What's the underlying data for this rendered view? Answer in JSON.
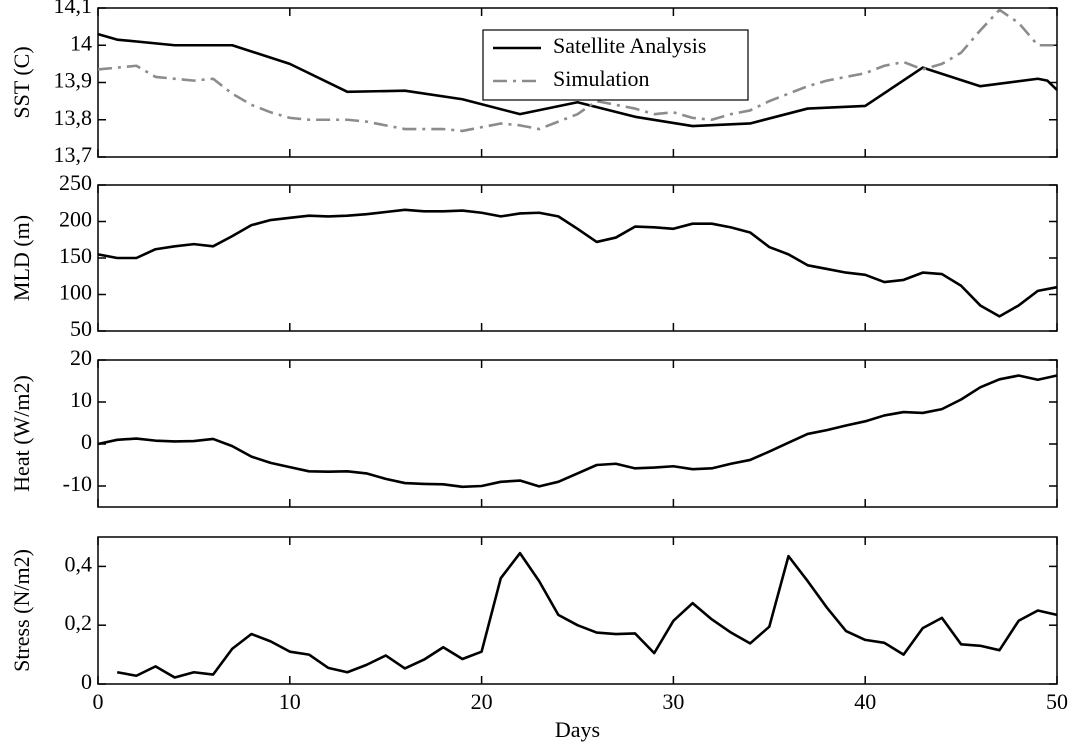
{
  "chart_data": [
    {
      "type": "line",
      "ylabel": "SST (C)",
      "xlim": [
        0,
        50
      ],
      "xticks": [
        0,
        10,
        20,
        30,
        40,
        50
      ],
      "ylim": [
        13.7,
        14.1
      ],
      "yticks": [
        {
          "value": 13.7,
          "label": "13,7"
        },
        {
          "value": 13.8,
          "label": "13,8"
        },
        {
          "value": 13.9,
          "label": "13,9"
        },
        14,
        {
          "value": 14.1,
          "label": "14,1"
        }
      ],
      "legend": "upper center",
      "series": [
        {
          "name": "Satellite Analysis",
          "color": "#000000",
          "dash": "solid",
          "x": [
            0,
            1,
            4,
            7,
            10,
            13,
            16,
            19,
            22,
            25,
            28,
            31,
            34,
            37,
            40,
            43,
            46,
            49,
            49.5,
            50
          ],
          "values": [
            14.03,
            14.015,
            14.0,
            14.0,
            13.95,
            13.875,
            13.878,
            13.855,
            13.815,
            13.847,
            13.808,
            13.783,
            13.79,
            13.83,
            13.837,
            13.94,
            13.89,
            13.91,
            13.905,
            13.88
          ]
        },
        {
          "name": "Simulation",
          "color": "#8c8c8c",
          "dash": "dash-dot",
          "x": [
            0,
            1,
            2,
            3,
            4,
            5,
            6,
            7,
            8,
            9,
            10,
            11,
            12,
            13,
            14,
            15,
            16,
            17,
            18,
            19,
            20,
            21,
            22,
            23,
            24,
            25,
            26,
            27,
            28,
            29,
            30,
            31,
            32,
            33,
            34,
            35,
            36,
            37,
            38,
            39,
            40,
            41,
            42,
            43,
            44,
            45,
            46,
            47,
            48,
            49,
            50
          ],
          "values": [
            13.935,
            13.94,
            13.945,
            13.915,
            13.91,
            13.905,
            13.91,
            13.87,
            13.84,
            13.82,
            13.805,
            13.8,
            13.8,
            13.8,
            13.795,
            13.785,
            13.775,
            13.775,
            13.775,
            13.77,
            13.78,
            13.79,
            13.785,
            13.775,
            13.795,
            13.815,
            13.85,
            13.84,
            13.83,
            13.815,
            13.82,
            13.805,
            13.8,
            13.815,
            13.825,
            13.85,
            13.87,
            13.89,
            13.905,
            13.915,
            13.925,
            13.945,
            13.955,
            13.935,
            13.95,
            13.98,
            14.04,
            14.095,
            14.06,
            14.0,
            14.0
          ]
        }
      ]
    },
    {
      "type": "line",
      "ylabel": "MLD (m)",
      "xlim": [
        0,
        50
      ],
      "xticks": [
        0,
        10,
        20,
        30,
        40,
        50
      ],
      "ylim": [
        50,
        250
      ],
      "yticks": [
        50,
        100,
        150,
        200,
        250
      ],
      "color": "#000000",
      "x": [
        0,
        1,
        2,
        3,
        4,
        5,
        6,
        7,
        8,
        9,
        10,
        11,
        12,
        13,
        14,
        15,
        16,
        17,
        18,
        19,
        20,
        21,
        22,
        23,
        24,
        25,
        26,
        27,
        28,
        29,
        30,
        31,
        32,
        33,
        34,
        35,
        36,
        37,
        38,
        39,
        40,
        41,
        42,
        43,
        44,
        45,
        46,
        47,
        48,
        49,
        50
      ],
      "values": [
        155,
        150,
        150,
        162,
        166,
        169,
        166,
        180,
        195,
        202,
        205,
        208,
        207,
        208,
        210,
        213,
        216,
        214,
        214,
        215,
        212,
        207,
        211,
        212,
        207,
        190,
        172,
        178,
        193,
        192,
        190,
        197,
        197,
        192,
        185,
        165,
        155,
        140,
        135,
        130,
        127,
        117,
        120,
        130,
        128,
        112,
        85,
        70,
        85,
        105,
        110
      ]
    },
    {
      "type": "line",
      "ylabel": "Heat  (W/m2)",
      "xlim": [
        0,
        50
      ],
      "xticks": [
        0,
        10,
        20,
        30,
        40,
        50
      ],
      "ylim": [
        -15,
        20
      ],
      "yticks": [
        -10,
        0,
        10,
        20
      ],
      "color": "#000000",
      "x": [
        0,
        1,
        2,
        3,
        4,
        5,
        6,
        7,
        8,
        9,
        10,
        11,
        12,
        13,
        14,
        15,
        16,
        17,
        18,
        19,
        20,
        21,
        22,
        23,
        24,
        25,
        26,
        27,
        28,
        29,
        30,
        31,
        32,
        33,
        34,
        35,
        36,
        37,
        38,
        39,
        40,
        41,
        42,
        43,
        44,
        45,
        46,
        47,
        48,
        49,
        50
      ],
      "values": [
        0,
        1,
        1.3,
        0.8,
        0.6,
        0.7,
        1.2,
        -0.5,
        -3,
        -4.5,
        -5.5,
        -6.5,
        -6.6,
        -6.5,
        -7,
        -8.3,
        -9.3,
        -9.5,
        -9.6,
        -10.2,
        -10,
        -9,
        -8.7,
        -10.1,
        -9,
        -7,
        -5,
        -4.7,
        -5.8,
        -5.6,
        -5.3,
        -6,
        -5.8,
        -4.7,
        -3.8,
        -1.8,
        0.3,
        2.4,
        3.3,
        4.4,
        5.4,
        6.8,
        7.6,
        7.4,
        8.3,
        10.6,
        13.5,
        15.4,
        16.3,
        15.3,
        16.3
      ]
    },
    {
      "type": "line",
      "ylabel": "Stress (N/m2)",
      "xlabel": "Days",
      "xlim": [
        0,
        50
      ],
      "xticks": [
        0,
        10,
        20,
        30,
        40,
        50
      ],
      "ylim": [
        0,
        0.5
      ],
      "yticks": [
        0,
        {
          "value": 0.2,
          "label": "0,2"
        },
        {
          "value": 0.4,
          "label": "0,4"
        }
      ],
      "color": "#000000",
      "x": [
        1,
        2,
        3,
        4,
        5,
        6,
        7,
        8,
        9,
        10,
        11,
        12,
        13,
        14,
        15,
        16,
        17,
        18,
        19,
        20,
        21,
        22,
        23,
        24,
        25,
        26,
        27,
        28,
        29,
        30,
        31,
        32,
        33,
        34,
        35,
        36,
        37,
        38,
        39,
        40,
        41,
        42,
        43,
        44,
        45,
        46,
        47,
        48,
        49,
        50
      ],
      "values": [
        0.04,
        0.028,
        0.06,
        0.022,
        0.04,
        0.032,
        0.12,
        0.17,
        0.145,
        0.11,
        0.1,
        0.055,
        0.04,
        0.065,
        0.097,
        0.053,
        0.083,
        0.125,
        0.085,
        0.11,
        0.36,
        0.445,
        0.35,
        0.235,
        0.2,
        0.175,
        0.17,
        0.172,
        0.105,
        0.215,
        0.275,
        0.22,
        0.175,
        0.138,
        0.195,
        0.435,
        0.35,
        0.26,
        0.18,
        0.15,
        0.14,
        0.1,
        0.19,
        0.225,
        0.135,
        0.13,
        0.115,
        0.215,
        0.25,
        0.235
      ]
    }
  ]
}
